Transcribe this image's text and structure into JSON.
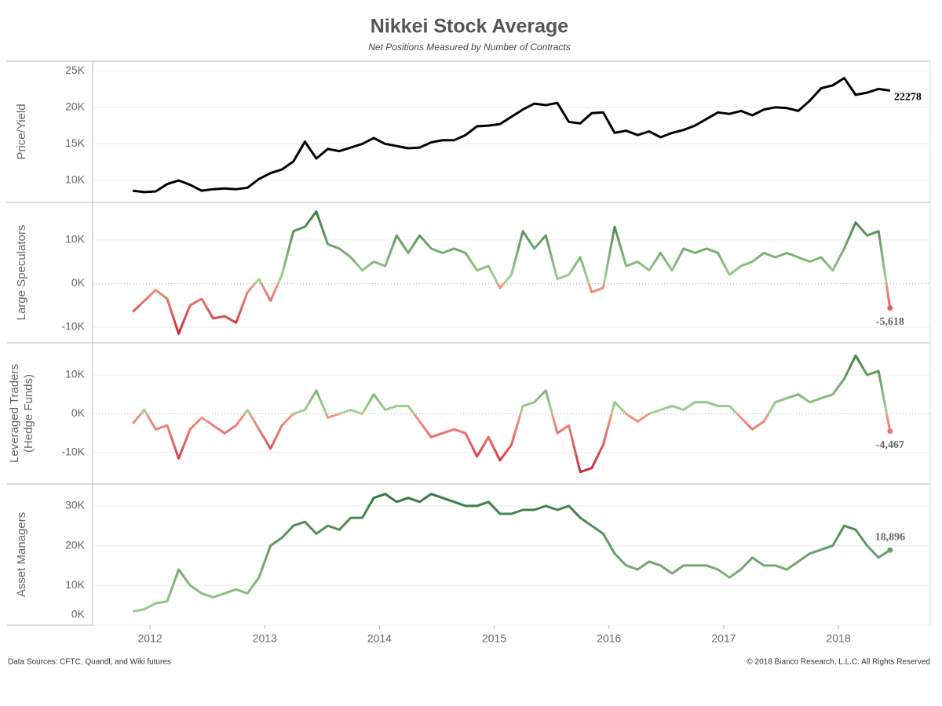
{
  "title": "Nikkei Stock Average",
  "subtitle": "Net Positions Measured by Number of Contracts",
  "footer": {
    "left": "Data Sources: CFTC, Quandl, and Wiki futures",
    "right": "© 2018 Bianco Research, L.L.C. All Rights Reserved"
  },
  "chart_data": [
    {
      "type": "line",
      "ylabel": [
        "Price/Yield"
      ],
      "color": "#000000",
      "x": [
        2011.85,
        2011.95,
        2012.05,
        2012.15,
        2012.25,
        2012.35,
        2012.45,
        2012.55,
        2012.65,
        2012.75,
        2012.85,
        2012.95,
        2013.05,
        2013.15,
        2013.25,
        2013.35,
        2013.45,
        2013.55,
        2013.65,
        2013.75,
        2013.85,
        2013.95,
        2014.05,
        2014.15,
        2014.25,
        2014.35,
        2014.45,
        2014.55,
        2014.65,
        2014.75,
        2014.85,
        2014.95,
        2015.05,
        2015.15,
        2015.25,
        2015.35,
        2015.45,
        2015.55,
        2015.65,
        2015.75,
        2015.85,
        2015.95,
        2016.05,
        2016.15,
        2016.25,
        2016.35,
        2016.45,
        2016.55,
        2016.65,
        2016.75,
        2016.85,
        2016.95,
        2017.05,
        2017.15,
        2017.25,
        2017.35,
        2017.45,
        2017.55,
        2017.65,
        2017.75,
        2017.85,
        2017.95,
        2018.05,
        2018.15,
        2018.25,
        2018.35,
        2018.45
      ],
      "values": [
        8600,
        8400,
        8500,
        9500,
        10000,
        9400,
        8600,
        8800,
        8900,
        8800,
        9000,
        10200,
        11000,
        11500,
        12600,
        15300,
        13000,
        14300,
        14000,
        14500,
        15000,
        15800,
        15000,
        14700,
        14400,
        14500,
        15200,
        15500,
        15500,
        16200,
        17400,
        17500,
        17700,
        18700,
        19700,
        20500,
        20300,
        20600,
        18000,
        17800,
        19200,
        19300,
        16500,
        16800,
        16200,
        16700,
        15900,
        16500,
        16900,
        17500,
        18400,
        19300,
        19100,
        19500,
        18900,
        19700,
        20000,
        19900,
        19500,
        20900,
        22600,
        23000,
        24000,
        21700,
        22000,
        22500,
        22278
      ],
      "xlim": [
        2011.5,
        2018.8
      ],
      "ylim": [
        7000,
        26300
      ],
      "yticks": [
        {
          "value": 10000,
          "label": "10K"
        },
        {
          "value": 15000,
          "label": "15K"
        },
        {
          "value": 20000,
          "label": "20K"
        },
        {
          "value": 25000,
          "label": "25K"
        }
      ],
      "grid": true
    },
    {
      "type": "line",
      "ylabel": [
        "Large Speculators"
      ],
      "gradient": [
        "#c8102e",
        "#f19a86",
        "#a5d394",
        "#2e6f3a"
      ],
      "x": [
        2011.85,
        2011.95,
        2012.05,
        2012.15,
        2012.25,
        2012.35,
        2012.45,
        2012.55,
        2012.65,
        2012.75,
        2012.85,
        2012.95,
        2013.05,
        2013.15,
        2013.25,
        2013.35,
        2013.45,
        2013.55,
        2013.65,
        2013.75,
        2013.85,
        2013.95,
        2014.05,
        2014.15,
        2014.25,
        2014.35,
        2014.45,
        2014.55,
        2014.65,
        2014.75,
        2014.85,
        2014.95,
        2015.05,
        2015.15,
        2015.25,
        2015.35,
        2015.45,
        2015.55,
        2015.65,
        2015.75,
        2015.85,
        2015.95,
        2016.05,
        2016.15,
        2016.25,
        2016.35,
        2016.45,
        2016.55,
        2016.65,
        2016.75,
        2016.85,
        2016.95,
        2017.05,
        2017.15,
        2017.25,
        2017.35,
        2017.45,
        2017.55,
        2017.65,
        2017.75,
        2017.85,
        2017.95,
        2018.05,
        2018.15,
        2018.25,
        2018.35,
        2018.45
      ],
      "values": [
        -6500,
        -4000,
        -1500,
        -3500,
        -11500,
        -5000,
        -3500,
        -8000,
        -7500,
        -9000,
        -2000,
        1000,
        -4000,
        2000,
        12000,
        13000,
        16500,
        9000,
        8000,
        6000,
        3000,
        5000,
        4000,
        11000,
        7000,
        11000,
        8000,
        7000,
        8000,
        7000,
        3000,
        4000,
        -1000,
        2000,
        12000,
        8000,
        11000,
        1000,
        2000,
        6000,
        -2000,
        -1000,
        13000,
        4000,
        5000,
        3000,
        7000,
        3000,
        8000,
        7000,
        8000,
        7000,
        2000,
        4000,
        5000,
        7000,
        6000,
        7000,
        6000,
        5000,
        6000,
        3000,
        8000,
        14000,
        11000,
        12000,
        -5618
      ],
      "value_labels": [
        null,
        null,
        null,
        null,
        null,
        null,
        null,
        null,
        null,
        null,
        null,
        null,
        null,
        null,
        null,
        null,
        null,
        null,
        null,
        null,
        null,
        null,
        null,
        null,
        null,
        null,
        null,
        null,
        null,
        null,
        null,
        null,
        null,
        null,
        null,
        null,
        null,
        null,
        null,
        null,
        null,
        null,
        null,
        null,
        null,
        null,
        null,
        null,
        null,
        null,
        null,
        null,
        null,
        null,
        null,
        null,
        null,
        null,
        null,
        null,
        null,
        null,
        null,
        null,
        null,
        null,
        "-5,618"
      ],
      "xlim": [
        2011.5,
        2018.8
      ],
      "ylim": [
        -13600,
        18600
      ],
      "yticks": [
        {
          "value": -10000,
          "label": "-10K"
        },
        {
          "value": 0,
          "label": "0K"
        },
        {
          "value": 10000,
          "label": "10K"
        }
      ],
      "grid": true
    },
    {
      "type": "line",
      "ylabel": [
        "Leveraged Traders",
        "(Hedge Funds)"
      ],
      "gradient": [
        "#c8102e",
        "#f19a86",
        "#a5d394",
        "#2e6f3a"
      ],
      "x": [
        2011.85,
        2011.95,
        2012.05,
        2012.15,
        2012.25,
        2012.35,
        2012.45,
        2012.55,
        2012.65,
        2012.75,
        2012.85,
        2012.95,
        2013.05,
        2013.15,
        2013.25,
        2013.35,
        2013.45,
        2013.55,
        2013.65,
        2013.75,
        2013.85,
        2013.95,
        2014.05,
        2014.15,
        2014.25,
        2014.35,
        2014.45,
        2014.55,
        2014.65,
        2014.75,
        2014.85,
        2014.95,
        2015.05,
        2015.15,
        2015.25,
        2015.35,
        2015.45,
        2015.55,
        2015.65,
        2015.75,
        2015.85,
        2015.95,
        2016.05,
        2016.15,
        2016.25,
        2016.35,
        2016.45,
        2016.55,
        2016.65,
        2016.75,
        2016.85,
        2016.95,
        2017.05,
        2017.15,
        2017.25,
        2017.35,
        2017.45,
        2017.55,
        2017.65,
        2017.75,
        2017.85,
        2017.95,
        2018.05,
        2018.15,
        2018.25,
        2018.35,
        2018.45
      ],
      "values": [
        -2500,
        1000,
        -4000,
        -3000,
        -11500,
        -4000,
        -1000,
        -3000,
        -5000,
        -3000,
        1000,
        -4000,
        -9000,
        -3000,
        0,
        1000,
        6000,
        -1000,
        0,
        1000,
        0,
        5000,
        1000,
        2000,
        2000,
        -2000,
        -6000,
        -5000,
        -4000,
        -5000,
        -11000,
        -6000,
        -12000,
        -8000,
        2000,
        3000,
        6000,
        -5000,
        -3000,
        -15000,
        -14000,
        -8000,
        3000,
        0,
        -2000,
        0,
        1000,
        2000,
        1000,
        3000,
        3000,
        2000,
        2000,
        -1000,
        -4000,
        -2000,
        3000,
        4000,
        5000,
        3000,
        4000,
        5000,
        9000,
        15000,
        10000,
        11000,
        -4467
      ],
      "value_labels": [
        null,
        null,
        null,
        null,
        null,
        null,
        null,
        null,
        null,
        null,
        null,
        null,
        null,
        null,
        null,
        null,
        null,
        null,
        null,
        null,
        null,
        null,
        null,
        null,
        null,
        null,
        null,
        null,
        null,
        null,
        null,
        null,
        null,
        null,
        null,
        null,
        null,
        null,
        null,
        null,
        null,
        null,
        null,
        null,
        null,
        null,
        null,
        null,
        null,
        null,
        null,
        null,
        null,
        null,
        null,
        null,
        null,
        null,
        null,
        null,
        null,
        null,
        null,
        null,
        null,
        null,
        "-4,467"
      ],
      "xlim": [
        2011.5,
        2018.8
      ],
      "ylim": [
        -18100,
        18300
      ],
      "yticks": [
        {
          "value": -10000,
          "label": "-10K"
        },
        {
          "value": 0,
          "label": "0K"
        },
        {
          "value": 10000,
          "label": "10K"
        }
      ],
      "grid": true
    },
    {
      "type": "line",
      "ylabel": [
        "Asset Managers"
      ],
      "gradient": [
        "#a5d394",
        "#2e6f3a"
      ],
      "x": [
        2011.85,
        2011.95,
        2012.05,
        2012.15,
        2012.25,
        2012.35,
        2012.45,
        2012.55,
        2012.65,
        2012.75,
        2012.85,
        2012.95,
        2013.05,
        2013.15,
        2013.25,
        2013.35,
        2013.45,
        2013.55,
        2013.65,
        2013.75,
        2013.85,
        2013.95,
        2014.05,
        2014.15,
        2014.25,
        2014.35,
        2014.45,
        2014.55,
        2014.65,
        2014.75,
        2014.85,
        2014.95,
        2015.05,
        2015.15,
        2015.25,
        2015.35,
        2015.45,
        2015.55,
        2015.65,
        2015.75,
        2015.85,
        2015.95,
        2016.05,
        2016.15,
        2016.25,
        2016.35,
        2016.45,
        2016.55,
        2016.65,
        2016.75,
        2016.85,
        2016.95,
        2017.05,
        2017.15,
        2017.25,
        2017.35,
        2017.45,
        2017.55,
        2017.65,
        2017.75,
        2017.85,
        2017.95,
        2018.05,
        2018.15,
        2018.25,
        2018.35,
        2018.45
      ],
      "values": [
        3500,
        4000,
        5500,
        6000,
        14000,
        10000,
        8000,
        7000,
        8000,
        9000,
        8000,
        12000,
        20000,
        22000,
        25000,
        26000,
        23000,
        25000,
        24000,
        27000,
        27000,
        32000,
        33000,
        31000,
        32000,
        31000,
        33000,
        32000,
        31000,
        30000,
        30000,
        31000,
        28000,
        28000,
        29000,
        29000,
        30000,
        29000,
        30000,
        27000,
        25000,
        23000,
        18000,
        15000,
        14000,
        16000,
        15000,
        13000,
        15000,
        15000,
        15000,
        14000,
        12000,
        14000,
        17000,
        15000,
        15000,
        14000,
        16000,
        18000,
        19000,
        20000,
        25000,
        24000,
        20000,
        17000,
        18896
      ],
      "value_labels": [
        null,
        null,
        null,
        null,
        null,
        null,
        null,
        null,
        null,
        null,
        null,
        null,
        null,
        null,
        null,
        null,
        null,
        null,
        null,
        null,
        null,
        null,
        null,
        null,
        null,
        null,
        null,
        null,
        null,
        null,
        null,
        null,
        null,
        null,
        null,
        null,
        null,
        null,
        null,
        null,
        null,
        null,
        null,
        null,
        null,
        null,
        null,
        null,
        null,
        null,
        null,
        null,
        null,
        null,
        null,
        null,
        null,
        null,
        null,
        null,
        null,
        null,
        null,
        null,
        null,
        null,
        "18,896"
      ],
      "xlim": [
        2011.5,
        2018.8
      ],
      "ylim": [
        0,
        35500
      ],
      "yticks": [
        {
          "value": 0,
          "label": "0K"
        },
        {
          "value": 10000,
          "label": "10K"
        },
        {
          "value": 20000,
          "label": "20K"
        },
        {
          "value": 30000,
          "label": "30K"
        }
      ],
      "xticks": [
        2012,
        2013,
        2014,
        2015,
        2016,
        2017,
        2018
      ],
      "grid": true
    }
  ]
}
